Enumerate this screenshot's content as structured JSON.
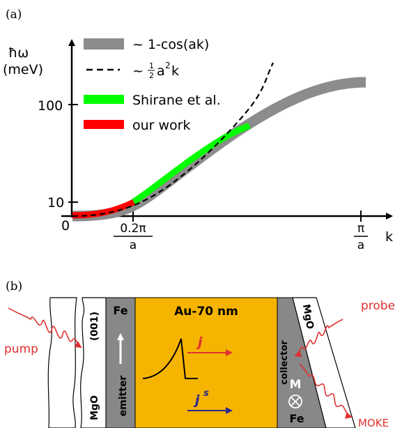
{
  "panel_a": {
    "label": "(a)",
    "y_axis_symbol": "ħω",
    "y_axis_unit": "(meV)",
    "y_tick_100": "100",
    "y_tick_10": "10",
    "x_tick_0": "0",
    "x_tick_02pi_num": "0.2π",
    "x_tick_02pi_den": "a",
    "x_tick_pi_num": "π",
    "x_tick_pi_den": "a",
    "x_axis_label": "k",
    "legend": {
      "cos_label": "~ 1-cos(ak)",
      "quad_prefix": "~",
      "quad_frac_num": "1",
      "quad_frac_den": "2",
      "quad_a": "a",
      "quad_exp": "2",
      "quad_k": "k",
      "shirane_label": "Shirane et al.",
      "ourwork_label": "our work"
    },
    "colors": {
      "cos": "#8c8c8c",
      "shirane": "#00ff00",
      "ourwork": "#ff0000",
      "quad": "#000000"
    }
  },
  "panel_b": {
    "label": "(b)",
    "pump_label": "pump",
    "probe_label": "probe",
    "moke_label": "MOKE",
    "mgo_left": "MgO",
    "orientation_001": "(001)",
    "emitter_fe": "Fe",
    "emitter_label": "emitter",
    "au_label": "Au-70 nm",
    "j_label": "j",
    "js_base": "j",
    "js_sup": "s",
    "collector_label": "collector",
    "m_label": "M",
    "collector_fe": "Fe",
    "mgo_right": "MgO",
    "colors": {
      "gold": "#f5b400",
      "gray": "#888888",
      "laser": "#e03030",
      "j_arrow": "#e03030",
      "js_arrow": "#2a2a8a"
    }
  }
}
